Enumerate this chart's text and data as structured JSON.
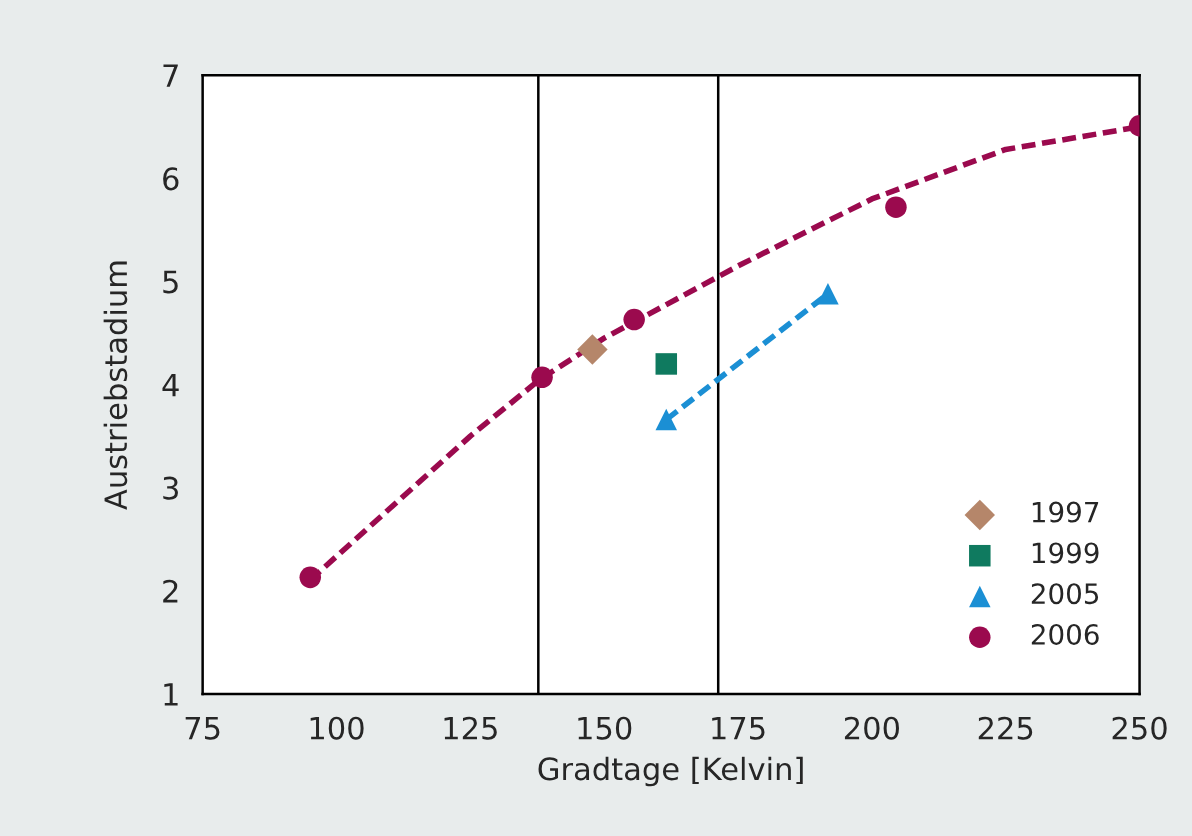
{
  "chart_data": {
    "type": "scatter",
    "xlabel": "Gradtage [Kelvin]",
    "ylabel": "Austriebstadium",
    "xlim": [
      75,
      250
    ],
    "xticks": [
      75,
      100,
      125,
      150,
      175,
      200,
      225,
      250
    ],
    "ylim": [
      1,
      7
    ],
    "yticks": [
      1,
      2,
      3,
      4,
      5,
      6,
      7
    ],
    "grid": false,
    "legend": "bottom right",
    "ref_lines": [
      {
        "axis": "x",
        "value": 137.7,
        "color": "#000000"
      },
      {
        "axis": "x",
        "value": 171.3,
        "color": "#000000"
      }
    ],
    "series": [
      {
        "type": "line",
        "color": "#9b0a4e",
        "line_style": "dashed",
        "marker": "none",
        "x": [
          95,
          110,
          125,
          138,
          150,
          175,
          200,
          225,
          250
        ],
        "values": [
          2.1,
          2.8,
          3.5,
          4.05,
          4.45,
          5.15,
          5.8,
          6.28,
          6.5
        ]
      },
      {
        "type": "line",
        "color": "#1b8fd4",
        "line_style": "dashed",
        "marker": "none",
        "x": [
          161.6,
          191.8
        ],
        "values": [
          3.66,
          4.88
        ]
      },
      {
        "name": "1997",
        "color": "#b5866a",
        "marker": "diamond",
        "x": [
          147.8
        ],
        "values": [
          4.34
        ]
      },
      {
        "name": "1999",
        "color": "#0f7a5f",
        "marker": "square",
        "x": [
          161.6
        ],
        "values": [
          4.2
        ]
      },
      {
        "name": "2005",
        "color": "#1b8fd4",
        "marker": "triangle",
        "x": [
          161.6,
          191.8
        ],
        "values": [
          3.66,
          4.88
        ]
      },
      {
        "name": "2006",
        "color": "#9b0a4e",
        "marker": "circle",
        "x": [
          95.1,
          138.4,
          155.6,
          204.5,
          250
        ],
        "values": [
          2.13,
          4.07,
          4.63,
          5.72,
          6.51
        ]
      }
    ]
  }
}
